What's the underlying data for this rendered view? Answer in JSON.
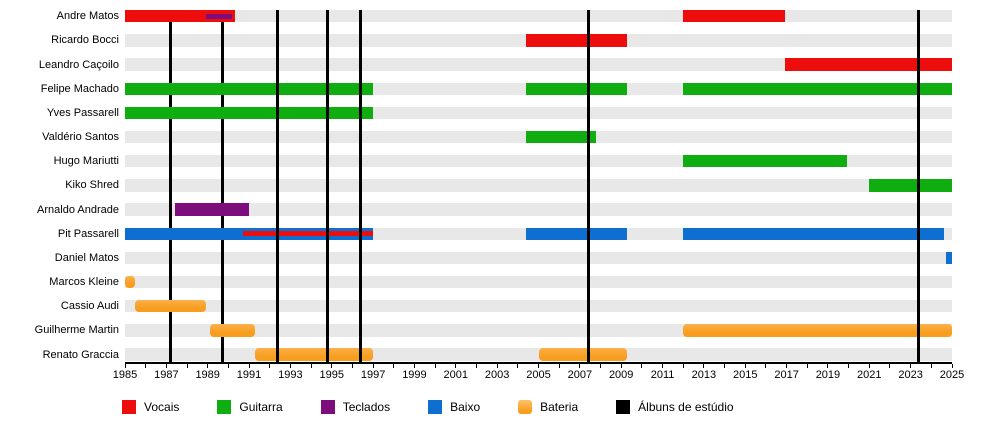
{
  "chart_data": {
    "type": "timeline",
    "title": "",
    "description": "Band members timeline (Gantt-style) with studio-album markers",
    "x_axis": {
      "min": 1985,
      "max": 2025,
      "labeled_tick_step": 2,
      "minor_tick_step": 1,
      "tick_labels": [
        "1985",
        "1987",
        "1989",
        "1991",
        "1993",
        "1995",
        "1997",
        "1999",
        "2001",
        "2003",
        "2005",
        "2007",
        "2009",
        "2011",
        "2013",
        "2015",
        "2017",
        "2019",
        "2021",
        "2023",
        "2025"
      ]
    },
    "row_background": "#e8e8e8",
    "grid": false,
    "legend_position": "bottom",
    "roles_legend": [
      {
        "label": "Vocais",
        "color": "#ee0d0d"
      },
      {
        "label": "Guitarra",
        "color": "#0fad0f"
      },
      {
        "label": "Teclados",
        "color": "#7d0c7d"
      },
      {
        "label": "Baixo",
        "color": "#0e6fd0"
      },
      {
        "label": "Bateria",
        "color": "#f9a22e"
      },
      {
        "label": "Álbuns de estúdio",
        "color": "#000000"
      }
    ],
    "members": [
      {
        "name": "Andre Matos",
        "bars": [
          {
            "role": "Vocais",
            "start": 1985.0,
            "end": 1990.3,
            "overlay": {
              "role": "Teclados",
              "start": 1988.9,
              "end": 1990.2
            }
          },
          {
            "role": "Vocais",
            "start": 2012.0,
            "end": 2016.9
          }
        ]
      },
      {
        "name": "Ricardo Bocci",
        "bars": [
          {
            "role": "Vocais",
            "start": 2004.4,
            "end": 2009.3
          }
        ]
      },
      {
        "name": "Leandro Caçoilo",
        "bars": [
          {
            "role": "Vocais",
            "start": 2016.9,
            "end": 2025.0
          }
        ]
      },
      {
        "name": "Felipe Machado",
        "bars": [
          {
            "role": "Guitarra",
            "start": 1985.0,
            "end": 1997.0
          },
          {
            "role": "Guitarra",
            "start": 2004.4,
            "end": 2009.3
          },
          {
            "role": "Guitarra",
            "start": 2012.0,
            "end": 2025.0
          }
        ]
      },
      {
        "name": "Yves Passarell",
        "bars": [
          {
            "role": "Guitarra",
            "start": 1985.0,
            "end": 1997.0
          }
        ]
      },
      {
        "name": "Valdério Santos",
        "bars": [
          {
            "role": "Guitarra",
            "start": 2004.4,
            "end": 2007.8
          }
        ]
      },
      {
        "name": "Hugo Mariutti",
        "bars": [
          {
            "role": "Guitarra",
            "start": 2012.0,
            "end": 2019.9
          }
        ]
      },
      {
        "name": "Kiko Shred",
        "bars": [
          {
            "role": "Guitarra",
            "start": 2021.0,
            "end": 2025.0
          }
        ]
      },
      {
        "name": "Arnaldo Andrade",
        "bars": [
          {
            "role": "Teclados",
            "start": 1987.4,
            "end": 1991.0
          }
        ]
      },
      {
        "name": "Pit Passarell",
        "bars": [
          {
            "role": "Baixo",
            "start": 1985.0,
            "end": 1997.0,
            "overlay": {
              "role": "Vocais",
              "start": 1990.7,
              "end": 1997.0
            }
          },
          {
            "role": "Baixo",
            "start": 2004.4,
            "end": 2009.3
          },
          {
            "role": "Baixo",
            "start": 2012.0,
            "end": 2024.6
          }
        ]
      },
      {
        "name": "Daniel Matos",
        "bars": [
          {
            "role": "Baixo",
            "start": 2024.7,
            "end": 2025.0
          }
        ]
      },
      {
        "name": "Marcos Kleine",
        "bars": [
          {
            "role": "Bateria",
            "start": 1985.0,
            "end": 1985.5
          }
        ]
      },
      {
        "name": "Cassio Audi",
        "bars": [
          {
            "role": "Bateria",
            "start": 1985.5,
            "end": 1988.9
          }
        ]
      },
      {
        "name": "Guilherme Martin",
        "bars": [
          {
            "role": "Bateria",
            "start": 1989.1,
            "end": 1991.3
          },
          {
            "role": "Bateria",
            "start": 2012.0,
            "end": 2025.0
          }
        ]
      },
      {
        "name": "Renato Graccia",
        "bars": [
          {
            "role": "Bateria",
            "start": 1991.3,
            "end": 1997.0
          },
          {
            "role": "Bateria",
            "start": 2005.0,
            "end": 2009.3
          }
        ]
      }
    ],
    "album_lines": [
      {
        "year": 1987.2,
        "layer": "back"
      },
      {
        "year": 1989.7,
        "layer": "back"
      },
      {
        "year": 1992.4,
        "layer": "front"
      },
      {
        "year": 1994.8,
        "layer": "front"
      },
      {
        "year": 1996.4,
        "layer": "front"
      },
      {
        "year": 2007.4,
        "layer": "front"
      },
      {
        "year": 2023.4,
        "layer": "front"
      }
    ]
  }
}
